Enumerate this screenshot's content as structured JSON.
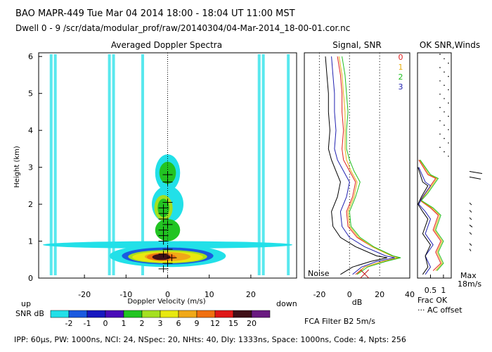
{
  "header": {
    "line1": "BAO   MAPR-449   Tue Mar 04 2014 18:00 - 18:04 UT 11:00 MST",
    "line2": "Dwell   0  -  9    /scr/data/modular_prof/raw/20140304/04-Mar-2014_18-00-01.cor.nc"
  },
  "colorbar": {
    "label": "SNR dB",
    "levels": [
      "-2",
      "-1",
      "0",
      "1",
      "2",
      "3",
      "6",
      "9",
      "12",
      "15",
      "20"
    ],
    "colors": [
      "#22e0e8",
      "#1a5ae0",
      "#1818c0",
      "#4a0ab8",
      "#22c422",
      "#a4e020",
      "#e8e810",
      "#f0a818",
      "#f07010",
      "#e01818",
      "#401018",
      "#6a1a80"
    ]
  },
  "labels": {
    "up": "up",
    "down": "down",
    "noise": "Noise",
    "fca": "FCA Filter B2   5m/s",
    "frac_ok": "Frac OK",
    "ac_offset": "··· AC offset",
    "max": "Max",
    "max_val": "18m/s",
    "footer": "IPP: 60μs,   PW: 1000ns,   NCI: 24,   NSpec: 20,   NHts: 40,   Dly: 1333ns,   Space: 1000ns,   Code: 4,   Npts: 256"
  },
  "chart_data": [
    {
      "type": "heatmap",
      "title": "Averaged Doppler Spectra",
      "xlabel": "Doppler Velocity (m/s)",
      "ylabel": "Height (km)",
      "xlim": [
        -31,
        31
      ],
      "ylim": [
        0,
        6.1
      ],
      "xticks": [
        -20,
        -10,
        0,
        10,
        20
      ],
      "yticks": [
        0,
        1,
        2,
        3,
        4,
        5,
        6
      ],
      "blobs": [
        {
          "v": 0,
          "h": 0.9,
          "dv": 30,
          "dh": 0.1,
          "level": 0
        },
        {
          "v": 0,
          "h": 0.6,
          "dv": 14,
          "dh": 0.3,
          "level": 0
        },
        {
          "v": 0,
          "h": 2.0,
          "dv": 3.8,
          "dh": 0.5,
          "level": 0
        },
        {
          "v": 0,
          "h": 2.85,
          "dv": 3.0,
          "dh": 0.5,
          "level": 0
        },
        {
          "v": 0,
          "h": 0.6,
          "dv": 11,
          "dh": 0.23,
          "level": 1
        },
        {
          "v": 0,
          "h": 0.58,
          "dv": 9.5,
          "dh": 0.18,
          "level": 5
        },
        {
          "v": 0,
          "h": 0.57,
          "dv": 8.5,
          "dh": 0.15,
          "level": 6
        },
        {
          "v": 0,
          "h": 0.58,
          "dv": 5.5,
          "dh": 0.12,
          "level": 7
        },
        {
          "v": -1.5,
          "h": 0.57,
          "dv": 3.5,
          "dh": 0.1,
          "level": 8
        },
        {
          "v": -1.5,
          "h": 0.57,
          "dv": 2.2,
          "dh": 0.08,
          "level": 10
        },
        {
          "v": -1,
          "h": 1.9,
          "dv": 2.2,
          "dh": 0.35,
          "level": 5
        },
        {
          "v": -1,
          "h": 1.9,
          "dv": 1.4,
          "dh": 0.25,
          "level": 4
        },
        {
          "v": 0,
          "h": 2.85,
          "dv": 2.0,
          "dh": 0.3,
          "level": 4
        },
        {
          "v": 0,
          "h": 1.3,
          "dv": 3,
          "dh": 0.3,
          "level": 4
        }
      ],
      "noise_streaks_v": [
        -28,
        -27,
        -14,
        -13,
        -6,
        22,
        23,
        29
      ],
      "wind_marks": [
        {
          "v": -1,
          "h": 0.25
        },
        {
          "v": 0,
          "h": 0.4
        },
        {
          "v": 1,
          "h": 0.55
        },
        {
          "v": -1,
          "h": 0.65
        },
        {
          "v": 0,
          "h": 0.78
        },
        {
          "v": -1,
          "h": 1.0
        },
        {
          "v": -1,
          "h": 1.15
        },
        {
          "v": -1,
          "h": 1.3
        },
        {
          "v": 0,
          "h": 1.45
        },
        {
          "v": -1,
          "h": 1.6
        },
        {
          "v": -1,
          "h": 1.75
        },
        {
          "v": -1,
          "h": 1.9
        },
        {
          "v": 0,
          "h": 2.05
        },
        {
          "v": 0,
          "h": 2.6
        },
        {
          "v": 0,
          "h": 2.8
        }
      ]
    },
    {
      "type": "line",
      "title": "Signal, SNR",
      "xlabel": "dB",
      "xlim": [
        -30,
        40
      ],
      "ylim": [
        0,
        6.1
      ],
      "xticks": [
        -20,
        0,
        20,
        40
      ],
      "series": [
        {
          "name": "0",
          "color": "#e02020",
          "points": [
            [
              -8,
              6
            ],
            [
              -6,
              5.5
            ],
            [
              -5,
              5
            ],
            [
              -5,
              4.5
            ],
            [
              -4,
              4
            ],
            [
              -5,
              3.5
            ],
            [
              -4,
              3.2
            ],
            [
              0,
              2.9
            ],
            [
              4,
              2.6
            ],
            [
              2,
              2.2
            ],
            [
              -2,
              1.8
            ],
            [
              -1,
              1.4
            ],
            [
              5,
              1.1
            ],
            [
              15,
              0.85
            ],
            [
              28,
              0.6
            ],
            [
              33,
              0.55
            ],
            [
              22,
              0.45
            ],
            [
              10,
              0.3
            ],
            [
              4,
              0.1
            ]
          ]
        },
        {
          "name": "1",
          "color": "#e8b010",
          "points": [
            [
              -7,
              6
            ],
            [
              -5,
              5.5
            ],
            [
              -4,
              5
            ],
            [
              -3,
              4.5
            ],
            [
              -3,
              4
            ],
            [
              -3,
              3.5
            ],
            [
              -2,
              3.2
            ],
            [
              1,
              2.9
            ],
            [
              5,
              2.6
            ],
            [
              3,
              2.2
            ],
            [
              -1,
              1.8
            ],
            [
              0,
              1.4
            ],
            [
              6,
              1.1
            ],
            [
              15,
              0.85
            ],
            [
              28,
              0.6
            ],
            [
              32,
              0.55
            ],
            [
              22,
              0.45
            ],
            [
              10,
              0.3
            ],
            [
              5,
              0.1
            ]
          ]
        },
        {
          "name": "2",
          "color": "#20c020",
          "points": [
            [
              -5,
              6
            ],
            [
              -3,
              5.5
            ],
            [
              -2,
              5
            ],
            [
              -1,
              4.5
            ],
            [
              -2,
              4
            ],
            [
              -2,
              3.5
            ],
            [
              0,
              3.2
            ],
            [
              3,
              2.9
            ],
            [
              7,
              2.6
            ],
            [
              4,
              2.2
            ],
            [
              0,
              1.8
            ],
            [
              1,
              1.4
            ],
            [
              7,
              1.1
            ],
            [
              16,
              0.85
            ],
            [
              29,
              0.6
            ],
            [
              34,
              0.55
            ],
            [
              24,
              0.45
            ],
            [
              12,
              0.3
            ],
            [
              5,
              0.1
            ]
          ]
        },
        {
          "name": "3",
          "color": "#2020b0",
          "points": [
            [
              -12,
              6
            ],
            [
              -11,
              5.5
            ],
            [
              -10,
              5
            ],
            [
              -10,
              4.5
            ],
            [
              -9,
              4
            ],
            [
              -10,
              3.5
            ],
            [
              -8,
              3.2
            ],
            [
              -4,
              2.9
            ],
            [
              0,
              2.6
            ],
            [
              -2,
              2.2
            ],
            [
              -6,
              1.8
            ],
            [
              -5,
              1.4
            ],
            [
              0,
              1.1
            ],
            [
              10,
              0.85
            ],
            [
              24,
              0.6
            ],
            [
              30,
              0.55
            ],
            [
              18,
              0.45
            ],
            [
              8,
              0.3
            ],
            [
              2,
              0.1
            ]
          ]
        },
        {
          "name": "",
          "color": "#000000",
          "points": [
            [
              -16,
              6
            ],
            [
              -15,
              5.5
            ],
            [
              -14,
              5
            ],
            [
              -14,
              4.5
            ],
            [
              -13,
              4
            ],
            [
              -14,
              3.5
            ],
            [
              -12,
              3.2
            ],
            [
              -9,
              2.9
            ],
            [
              -6,
              2.6
            ],
            [
              -8,
              2.2
            ],
            [
              -12,
              1.8
            ],
            [
              -11,
              1.4
            ],
            [
              -6,
              1.1
            ],
            [
              4,
              0.85
            ],
            [
              18,
              0.6
            ],
            [
              25,
              0.55
            ],
            [
              14,
              0.45
            ],
            [
              2,
              0.3
            ],
            [
              -6,
              0.1
            ]
          ]
        }
      ]
    },
    {
      "type": "line",
      "title": "OK  SNR,Winds",
      "xlim": [
        0,
        1.3
      ],
      "ylim": [
        0,
        6.1
      ],
      "xticks": [
        "0.5",
        "1"
      ],
      "xtick_values": [
        0.5,
        1.0
      ],
      "series": [
        {
          "name": "0",
          "color": "#e02020",
          "points": [
            [
              0.05,
              3.2
            ],
            [
              0.4,
              2.8
            ],
            [
              0.7,
              2.7
            ],
            [
              0.3,
              2.3
            ],
            [
              0.1,
              2.1
            ],
            [
              0.5,
              1.9
            ],
            [
              0.8,
              1.7
            ],
            [
              0.6,
              1.3
            ],
            [
              0.9,
              1.0
            ],
            [
              0.7,
              0.7
            ],
            [
              0.9,
              0.4
            ],
            [
              0.6,
              0.2
            ]
          ]
        },
        {
          "name": "1",
          "color": "#e8b010",
          "points": [
            [
              0.08,
              3.2
            ],
            [
              0.45,
              2.8
            ],
            [
              0.75,
              2.7
            ],
            [
              0.35,
              2.3
            ],
            [
              0.12,
              2.1
            ],
            [
              0.55,
              1.9
            ],
            [
              0.85,
              1.7
            ],
            [
              0.65,
              1.3
            ],
            [
              0.95,
              1.0
            ],
            [
              0.75,
              0.7
            ],
            [
              0.95,
              0.4
            ],
            [
              0.7,
              0.2
            ]
          ]
        },
        {
          "name": "2",
          "color": "#20c020",
          "points": [
            [
              0.1,
              3.2
            ],
            [
              0.5,
              2.8
            ],
            [
              0.8,
              2.7
            ],
            [
              0.4,
              2.3
            ],
            [
              0.15,
              2.1
            ],
            [
              0.6,
              1.9
            ],
            [
              0.9,
              1.7
            ],
            [
              0.7,
              1.3
            ],
            [
              1.0,
              1.0
            ],
            [
              0.8,
              0.7
            ],
            [
              1.0,
              0.4
            ],
            [
              0.75,
              0.2
            ]
          ]
        },
        {
          "name": "3",
          "color": "#2020b0",
          "points": [
            [
              0.05,
              3.0
            ],
            [
              0.3,
              2.6
            ],
            [
              0.5,
              2.5
            ],
            [
              0.2,
              2.2
            ],
            [
              0.05,
              2.0
            ],
            [
              0.3,
              1.8
            ],
            [
              0.5,
              1.6
            ],
            [
              0.3,
              1.2
            ],
            [
              0.6,
              0.9
            ],
            [
              0.3,
              0.6
            ],
            [
              0.5,
              0.3
            ],
            [
              0.3,
              0.1
            ]
          ]
        },
        {
          "name": "",
          "color": "#000000",
          "points": [
            [
              0.02,
              3.0
            ],
            [
              0.2,
              2.6
            ],
            [
              0.4,
              2.5
            ],
            [
              0.15,
              2.2
            ],
            [
              0.02,
              2.0
            ],
            [
              0.2,
              1.8
            ],
            [
              0.4,
              1.6
            ],
            [
              0.2,
              1.2
            ],
            [
              0.5,
              0.9
            ],
            [
              0.3,
              0.6
            ],
            [
              0.4,
              0.3
            ],
            [
              0.2,
              0.1
            ]
          ]
        }
      ]
    }
  ]
}
